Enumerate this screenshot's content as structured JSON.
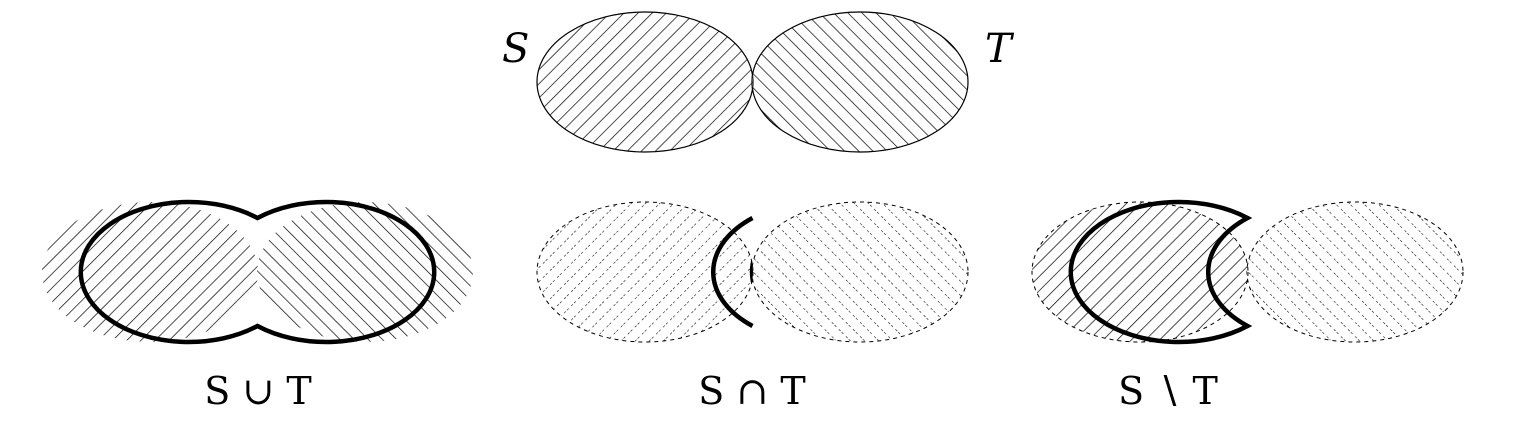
{
  "top": {
    "label_s": "S",
    "label_t": "T"
  },
  "panels": {
    "union": {
      "caption": "S ∪ T"
    },
    "intersection": {
      "caption": "S ∩ T"
    },
    "difference": {
      "caption": "S ∖ T"
    }
  },
  "colors": {
    "ink": "#000000",
    "background": "#ffffff"
  }
}
